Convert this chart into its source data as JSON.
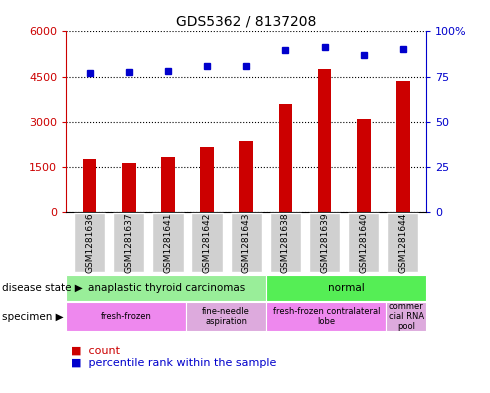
{
  "title": "GDS5362 / 8137208",
  "samples": [
    "GSM1281636",
    "GSM1281637",
    "GSM1281641",
    "GSM1281642",
    "GSM1281643",
    "GSM1281638",
    "GSM1281639",
    "GSM1281640",
    "GSM1281644"
  ],
  "counts": [
    1750,
    1620,
    1820,
    2180,
    2350,
    3600,
    4750,
    3100,
    4350
  ],
  "percentiles": [
    77,
    77.5,
    78,
    81,
    81,
    90,
    91.5,
    87,
    90.5
  ],
  "bar_color": "#cc0000",
  "dot_color": "#0000cc",
  "ylim_left": [
    0,
    6000
  ],
  "ylim_right": [
    0,
    100
  ],
  "yticks_left": [
    0,
    1500,
    3000,
    4500,
    6000
  ],
  "ytick_labels_left": [
    "0",
    "1500",
    "3000",
    "4500",
    "6000"
  ],
  "yticks_right": [
    0,
    25,
    50,
    75,
    100
  ],
  "ytick_labels_right": [
    "0",
    "25",
    "50",
    "75",
    "100%"
  ],
  "disease_state_groups": [
    {
      "label": "anaplastic thyroid carcinomas",
      "start": 0,
      "end": 5,
      "color": "#99ee99"
    },
    {
      "label": "normal",
      "start": 5,
      "end": 9,
      "color": "#55ee55"
    }
  ],
  "specimen_groups": [
    {
      "label": "fresh-frozen",
      "start": 0,
      "end": 3,
      "color": "#ee88ee"
    },
    {
      "label": "fine-needle\naspiration",
      "start": 3,
      "end": 5,
      "color": "#ddaadd"
    },
    {
      "label": "fresh-frozen contralateral\nlobe",
      "start": 5,
      "end": 8,
      "color": "#ee88ee"
    },
    {
      "label": "commer\ncial RNA\npool",
      "start": 8,
      "end": 9,
      "color": "#ddaadd"
    }
  ],
  "legend_count_label": "count",
  "legend_percentile_label": "percentile rank within the sample",
  "disease_state_label": "disease state",
  "specimen_label": "specimen"
}
